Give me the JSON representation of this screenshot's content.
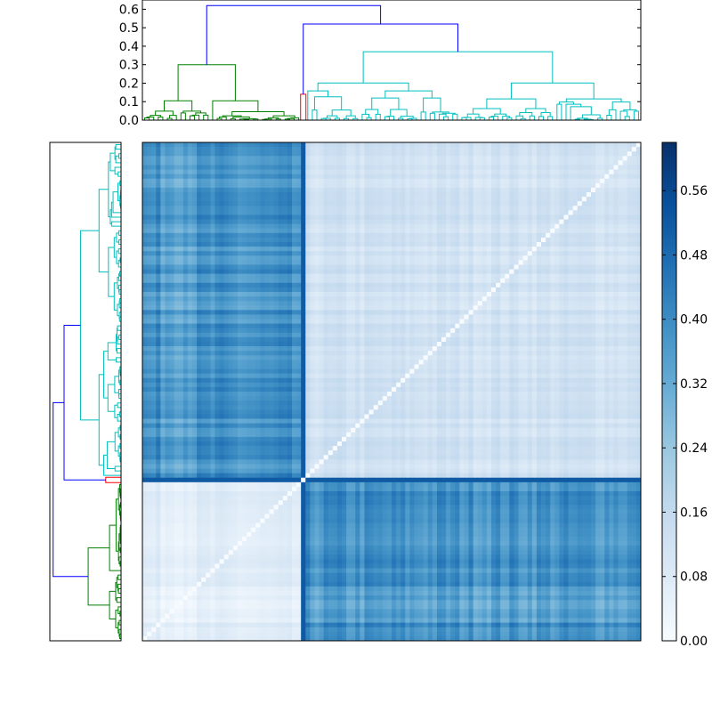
{
  "chart_data": {
    "type": "heatmap",
    "title": "",
    "xlabel": "",
    "ylabel": "",
    "n": 110,
    "cluster_sizes": {
      "green": 35,
      "red": 1,
      "cyan": 74
    },
    "dendrogram": {
      "orientation_top": "top",
      "orientation_left": "left",
      "ylim": [
        0,
        0.65
      ],
      "ticks": [
        0.0,
        0.1,
        0.2,
        0.3,
        0.4,
        0.5,
        0.6
      ],
      "tick_labels": [
        "0.0",
        "0.1",
        "0.2",
        "0.3",
        "0.4",
        "0.5",
        "0.6"
      ],
      "root_height": 0.62,
      "right_group_height": 0.52,
      "cyan_group_height": 0.37,
      "green_group_height": 0.3,
      "red_leaf_height": 0.14,
      "colors": {
        "green": "#008000",
        "red": "#ff0000",
        "cyan": "#00bfbf",
        "link": "#0000ff"
      }
    },
    "matrix": {
      "colormap": "Blues",
      "min": 0.0,
      "max": 0.62,
      "green_within": 0.06,
      "cyan_within": 0.12,
      "green_vs_cyan": 0.37,
      "red_vs_all": 0.52
    },
    "colorbar": {
      "ticks": [
        0.0,
        0.08,
        0.16,
        0.24,
        0.32,
        0.4,
        0.48,
        0.56
      ],
      "tick_labels": [
        "0.00",
        "0.08",
        "0.16",
        "0.24",
        "0.32",
        "0.40",
        "0.48",
        "0.56"
      ],
      "range": [
        0.0,
        0.62
      ]
    }
  }
}
